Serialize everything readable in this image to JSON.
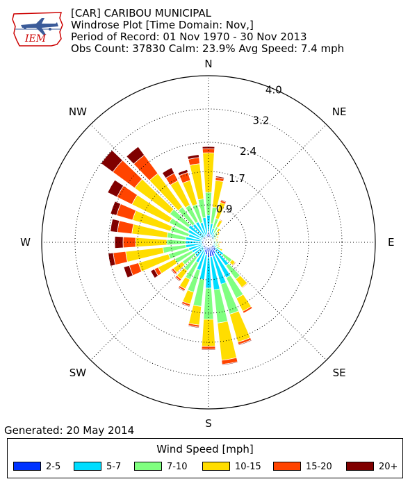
{
  "header": {
    "station": "[CAR] CARIBOU MUNICIPAL",
    "plot": "Windrose Plot [Time Domain: Nov,]",
    "period": "Period of Record: 01 Nov 1970 - 30 Nov 2013",
    "stats": "Obs Count: 37830 Calm: 23.9% Avg Speed: 7.4 mph"
  },
  "logo": {
    "text": "IEM"
  },
  "footer": {
    "generated": "Generated: 20 May 2014"
  },
  "chart_data": {
    "type": "windrose",
    "radial_axis": {
      "ticks": [
        "0.9",
        "1.7",
        "2.4",
        "3.2",
        "4.0"
      ],
      "values": [
        0.9,
        1.7,
        2.4,
        3.2,
        4.0
      ],
      "max": 4.0,
      "unit": "%"
    },
    "compass_labels": [
      "N",
      "NE",
      "E",
      "SE",
      "S",
      "SW",
      "W",
      "NW"
    ],
    "legend_title": "Wind Speed [mph]",
    "bins": [
      "2-5",
      "5-7",
      "7-10",
      "10-15",
      "15-20",
      "20+"
    ],
    "colors": [
      "#0033ff",
      "#00ddff",
      "#80ff80",
      "#ffdd00",
      "#ff4400",
      "#800000"
    ],
    "directions": [
      0,
      10,
      20,
      30,
      40,
      50,
      60,
      70,
      80,
      90,
      100,
      110,
      120,
      130,
      140,
      150,
      160,
      170,
      180,
      190,
      200,
      210,
      220,
      230,
      240,
      250,
      260,
      270,
      280,
      290,
      300,
      310,
      320,
      330,
      340,
      350
    ],
    "cumulative": [
      [
        0.25,
        0.65,
        1.2,
        2.15,
        2.25,
        2.3
      ],
      [
        0.2,
        0.45,
        0.85,
        1.5,
        1.57,
        1.6
      ],
      [
        0.17,
        0.35,
        0.6,
        1.0,
        1.05,
        1.07
      ],
      [
        0.13,
        0.26,
        0.42,
        0.6,
        0.62,
        0.63
      ],
      [
        0.12,
        0.22,
        0.32,
        0.42,
        0.43,
        0.43
      ],
      [
        0.1,
        0.18,
        0.27,
        0.34,
        0.35,
        0.35
      ],
      [
        0.1,
        0.16,
        0.22,
        0.28,
        0.29,
        0.29
      ],
      [
        0.09,
        0.14,
        0.19,
        0.24,
        0.25,
        0.25
      ],
      [
        0.08,
        0.13,
        0.18,
        0.22,
        0.23,
        0.23
      ],
      [
        0.1,
        0.18,
        0.25,
        0.3,
        0.32,
        0.32
      ],
      [
        0.1,
        0.16,
        0.22,
        0.27,
        0.28,
        0.28
      ],
      [
        0.1,
        0.17,
        0.24,
        0.29,
        0.3,
        0.3
      ],
      [
        0.12,
        0.22,
        0.32,
        0.38,
        0.39,
        0.4
      ],
      [
        0.2,
        0.45,
        0.7,
        0.8,
        0.82,
        0.82
      ],
      [
        0.25,
        0.7,
        1.1,
        1.35,
        1.37,
        1.38
      ],
      [
        0.3,
        0.95,
        1.5,
        1.85,
        1.9,
        1.91
      ],
      [
        0.35,
        1.05,
        1.8,
        2.5,
        2.56,
        2.58
      ],
      [
        0.35,
        1.15,
        1.95,
        2.85,
        2.95,
        2.97
      ],
      [
        0.35,
        1.1,
        1.85,
        2.5,
        2.57,
        2.59
      ],
      [
        0.3,
        0.9,
        1.55,
        2.0,
        2.05,
        2.07
      ],
      [
        0.25,
        0.7,
        1.25,
        1.55,
        1.6,
        1.62
      ],
      [
        0.2,
        0.55,
        1.0,
        1.25,
        1.3,
        1.32
      ],
      [
        0.17,
        0.45,
        0.85,
        1.1,
        1.15,
        1.17
      ],
      [
        0.15,
        0.42,
        0.78,
        1.05,
        1.1,
        1.12
      ],
      [
        0.15,
        0.45,
        0.9,
        1.35,
        1.45,
        1.55
      ],
      [
        0.15,
        0.5,
        1.0,
        1.75,
        1.98,
        2.12
      ],
      [
        0.15,
        0.55,
        1.1,
        2.0,
        2.3,
        2.42
      ],
      [
        0.15,
        0.55,
        1.0,
        1.75,
        2.05,
        2.25
      ],
      [
        0.15,
        0.55,
        1.0,
        1.85,
        2.2,
        2.37
      ],
      [
        0.15,
        0.5,
        0.95,
        1.9,
        2.3,
        2.45
      ],
      [
        0.15,
        0.55,
        1.05,
        2.05,
        2.45,
        2.7
      ],
      [
        0.15,
        0.6,
        1.15,
        2.2,
        2.85,
        3.2
      ],
      [
        0.15,
        0.55,
        1.05,
        2.05,
        2.6,
        2.85
      ],
      [
        0.15,
        0.55,
        1.0,
        1.65,
        1.85,
        2.0
      ],
      [
        0.15,
        0.5,
        0.95,
        1.55,
        1.75,
        1.82
      ],
      [
        0.2,
        0.6,
        1.05,
        1.9,
        2.05,
        2.12
      ]
    ]
  }
}
